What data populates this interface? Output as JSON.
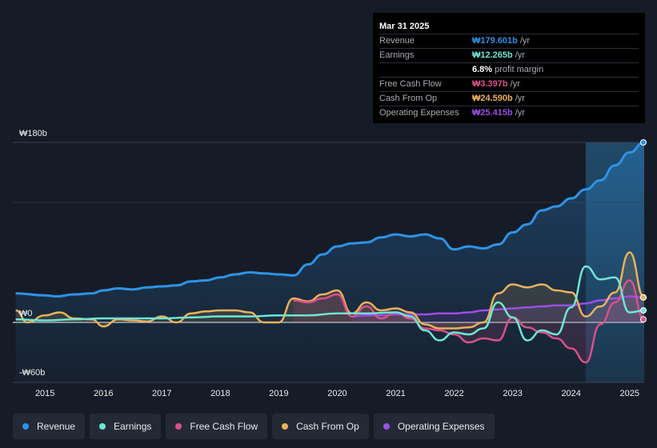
{
  "tooltip": {
    "date": "Mar 31 2025",
    "rows": [
      {
        "label": "Revenue",
        "value": "₩179.601b",
        "unit": "/yr",
        "color": "#2e93e6"
      },
      {
        "label": "Earnings",
        "value": "₩12.265b",
        "unit": "/yr",
        "color": "#6ee5d4"
      },
      {
        "label": "",
        "value": "6.8%",
        "unit": "profit margin",
        "color": "#ffffff"
      },
      {
        "label": "Free Cash Flow",
        "value": "₩3.397b",
        "unit": "/yr",
        "color": "#d9508a"
      },
      {
        "label": "Cash From Op",
        "value": "₩24.590b",
        "unit": "/yr",
        "color": "#eab15b"
      },
      {
        "label": "Operating Expenses",
        "value": "₩25.415b",
        "unit": "/yr",
        "color": "#9d4ee6"
      }
    ]
  },
  "legend": [
    {
      "label": "Revenue",
      "color": "#2e93e6"
    },
    {
      "label": "Earnings",
      "color": "#6ee5d4"
    },
    {
      "label": "Free Cash Flow",
      "color": "#d9508a"
    },
    {
      "label": "Cash From Op",
      "color": "#eab15b"
    },
    {
      "label": "Operating Expenses",
      "color": "#9d4ee6"
    }
  ],
  "chart_data": {
    "type": "line",
    "title": "",
    "xlabel": "",
    "ylabel": "",
    "ylim": [
      -60,
      180
    ],
    "y_tick_labels": [
      "₩180b",
      "₩0",
      "-₩60b"
    ],
    "y_ticks": [
      180,
      0,
      -60
    ],
    "x_tick_labels": [
      "2015",
      "2016",
      "2017",
      "2018",
      "2019",
      "2020",
      "2021",
      "2022",
      "2023",
      "2024",
      "2025"
    ],
    "x_ticks": [
      2015,
      2016,
      2017,
      2018,
      2019,
      2020,
      2021,
      2022,
      2023,
      2024,
      2025
    ],
    "xlim": [
      2014.45,
      2025.25
    ],
    "highlight_start": 2024.25,
    "series": [
      {
        "name": "Revenue",
        "color": "#2e93e6",
        "fill": true,
        "x": [
          2014.5,
          2015.0,
          2015.2,
          2015.5,
          2015.8,
          2016.0,
          2016.25,
          2016.5,
          2016.75,
          2017.0,
          2017.25,
          2017.5,
          2017.75,
          2018.0,
          2018.25,
          2018.5,
          2018.75,
          2019.0,
          2019.25,
          2019.5,
          2019.75,
          2020.0,
          2020.25,
          2020.5,
          2020.75,
          2021.0,
          2021.25,
          2021.5,
          2021.75,
          2022.0,
          2022.25,
          2022.5,
          2022.75,
          2023.0,
          2023.25,
          2023.5,
          2023.75,
          2024.0,
          2024.25,
          2024.5,
          2024.75,
          2025.0,
          2025.25
        ],
        "values": [
          29,
          27,
          26,
          28,
          29,
          32,
          34,
          33,
          35,
          36,
          37,
          41,
          42,
          45,
          48,
          50,
          49,
          48,
          47,
          58,
          68,
          76,
          79,
          80,
          85,
          88,
          86,
          88,
          84,
          73,
          76,
          74,
          78,
          90,
          98,
          112,
          116,
          124,
          133,
          142,
          157,
          170,
          180
        ]
      },
      {
        "name": "Earnings",
        "color": "#6ee5d4",
        "fill": false,
        "x": [
          2014.5,
          2015.0,
          2015.5,
          2016.0,
          2016.5,
          2017.0,
          2017.5,
          2018.0,
          2018.5,
          2019.0,
          2019.5,
          2020.0,
          2020.5,
          2021.0,
          2021.25,
          2021.5,
          2021.75,
          2022.0,
          2022.25,
          2022.5,
          2022.75,
          2023.0,
          2023.25,
          2023.5,
          2023.75,
          2024.0,
          2024.25,
          2024.5,
          2024.75,
          2025.0,
          2025.25
        ],
        "values": [
          3,
          2,
          3,
          4,
          4,
          4,
          5,
          6,
          6,
          7,
          7,
          9,
          9,
          10,
          6,
          -8,
          -18,
          -10,
          -12,
          -6,
          20,
          5,
          -18,
          -8,
          -12,
          15,
          56,
          43,
          45,
          10,
          12
        ]
      },
      {
        "name": "Free Cash Flow",
        "color": "#d9508a",
        "fill": true,
        "x": [
          2019.25,
          2019.5,
          2019.75,
          2020.0,
          2020.25,
          2020.5,
          2020.75,
          2021.0,
          2021.25,
          2021.5,
          2021.75,
          2022.0,
          2022.25,
          2022.5,
          2022.75,
          2023.0,
          2023.25,
          2023.5,
          2023.75,
          2024.0,
          2024.25,
          2024.5,
          2024.75,
          2025.0,
          2025.25
        ],
        "values": [
          22,
          20,
          24,
          28,
          6,
          16,
          4,
          10,
          4,
          -6,
          -8,
          -12,
          -20,
          -16,
          -18,
          5,
          -5,
          -10,
          -16,
          -26,
          -40,
          -2,
          20,
          42,
          3
        ]
      },
      {
        "name": "Cash From Op",
        "color": "#eab15b",
        "fill": true,
        "x": [
          2014.5,
          2014.7,
          2015.0,
          2015.25,
          2015.5,
          2015.8,
          2016.0,
          2016.25,
          2016.5,
          2016.75,
          2017.0,
          2017.25,
          2017.5,
          2017.75,
          2018.0,
          2018.25,
          2018.5,
          2018.75,
          2019.0,
          2019.25,
          2019.5,
          2019.75,
          2020.0,
          2020.25,
          2020.5,
          2020.75,
          2021.0,
          2021.25,
          2021.5,
          2021.75,
          2022.0,
          2022.25,
          2022.5,
          2022.75,
          2023.0,
          2023.25,
          2023.5,
          2023.75,
          2024.0,
          2024.25,
          2024.5,
          2024.75,
          2025.0,
          2025.25
        ],
        "values": [
          12,
          0,
          7,
          10,
          4,
          3,
          -4,
          3,
          2,
          1,
          6,
          0,
          9,
          11,
          12,
          12,
          10,
          0,
          0,
          24,
          21,
          28,
          32,
          9,
          20,
          12,
          14,
          10,
          -2,
          -6,
          -6,
          -5,
          0,
          29,
          38,
          35,
          38,
          32,
          30,
          6,
          16,
          30,
          70,
          25
        ]
      },
      {
        "name": "Operating Expenses",
        "color": "#9d4ee6",
        "fill": true,
        "x": [
          2020.25,
          2020.5,
          2020.75,
          2021.0,
          2021.25,
          2021.5,
          2021.75,
          2022.0,
          2022.25,
          2022.5,
          2022.75,
          2023.0,
          2023.25,
          2023.5,
          2023.75,
          2024.0,
          2024.25,
          2024.5,
          2024.75,
          2025.0,
          2025.25
        ],
        "values": [
          6,
          7,
          7,
          8,
          8,
          8,
          9,
          9,
          10,
          12,
          13,
          14,
          15,
          16,
          17,
          17,
          19,
          22,
          24,
          26,
          25
        ]
      }
    ]
  }
}
